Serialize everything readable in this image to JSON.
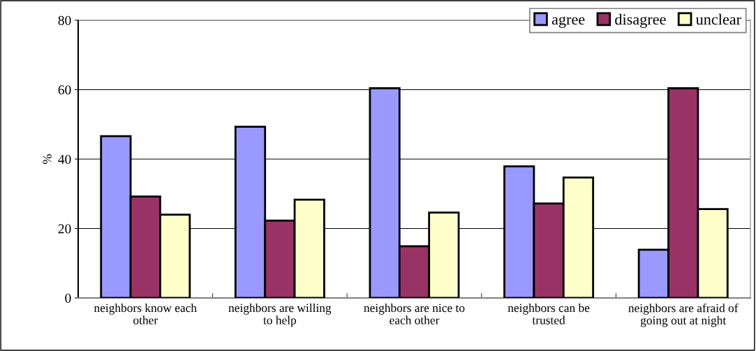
{
  "chart_data": {
    "type": "bar",
    "ylabel": "%",
    "categories": [
      "neighbors know each other",
      "neighbors are willing to help",
      "neighbors are nice to each other",
      "neighbors can be trusted",
      "neighbors are afraid of going out at night"
    ],
    "series": [
      {
        "name": "agree",
        "color": "#9999ff",
        "values": [
          46.6,
          49.3,
          60.4,
          37.9,
          13.9
        ]
      },
      {
        "name": "disagree",
        "color": "#993366",
        "values": [
          29.2,
          22.3,
          14.9,
          27.2,
          60.4
        ]
      },
      {
        "name": "unclear",
        "color": "#ffffcc",
        "values": [
          24.0,
          28.3,
          24.6,
          34.7,
          25.6
        ]
      }
    ],
    "ylim": [
      0,
      80
    ],
    "yticks": [
      0,
      20,
      40,
      60,
      80
    ],
    "grid": "y",
    "legend": "top right"
  }
}
